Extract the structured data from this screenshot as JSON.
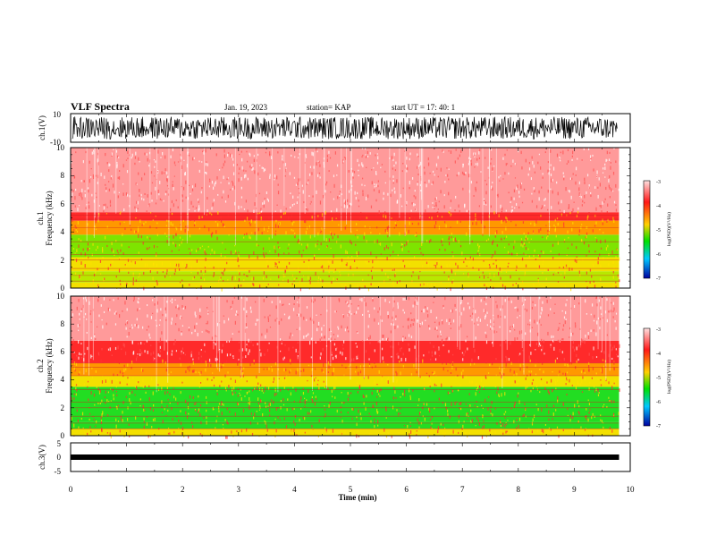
{
  "header": {
    "title": "VLF Spectra",
    "date": "Jan. 19, 2023",
    "station": "station= KAP",
    "start": "start  UT  =   17: 40: 1"
  },
  "chart_data": [
    {
      "panel": "ch1-waveform",
      "type": "line",
      "ylabel": "ch.1(V)",
      "ylim": [
        -10,
        10
      ],
      "ytick_labels": [
        "10",
        "-10"
      ],
      "xlim": [
        0,
        10
      ],
      "trace_color": "#000000"
    },
    {
      "panel": "ch1-spectrogram",
      "type": "heatmap",
      "ylabel_line1": "ch.1",
      "ylabel_line2": "Frequency (kHz)",
      "ylim": [
        0,
        10
      ],
      "ytick_labels": [
        "0",
        "2",
        "4",
        "6",
        "8",
        "10"
      ],
      "xlim": [
        0,
        9.8
      ],
      "bands_khz": [
        {
          "from": 0.0,
          "to": 0.4,
          "level": "yellow"
        },
        {
          "from": 0.4,
          "to": 1.2,
          "level": "yellow-green"
        },
        {
          "from": 1.2,
          "to": 2.2,
          "level": "yellow"
        },
        {
          "from": 2.2,
          "to": 3.8,
          "level": "green-yellow"
        },
        {
          "from": 3.8,
          "to": 4.8,
          "level": "orange"
        },
        {
          "from": 4.8,
          "to": 5.4,
          "level": "red"
        },
        {
          "from": 5.4,
          "to": 10.0,
          "level": "light-red"
        }
      ],
      "colorbar": {
        "label": "log(PSD)(V²/Hz)",
        "min": -7,
        "max": -3,
        "tick_labels": [
          "-3",
          "-4",
          "-5",
          "-6",
          "-7"
        ],
        "colors": [
          "#ffd8d8",
          "#ff2020",
          "#ffd000",
          "#00e000",
          "#00c8ff",
          "#0000b0"
        ]
      }
    },
    {
      "panel": "ch2-spectrogram",
      "type": "heatmap",
      "ylabel_line1": "ch.2",
      "ylabel_line2": "Frequency (kHz)",
      "ylim": [
        0,
        10
      ],
      "ytick_labels": [
        "0",
        "2",
        "4",
        "6",
        "8",
        "10"
      ],
      "xlim": [
        0,
        9.8
      ],
      "bands_khz": [
        {
          "from": 0.0,
          "to": 0.5,
          "level": "yellow"
        },
        {
          "from": 0.5,
          "to": 1.0,
          "level": "green"
        },
        {
          "from": 1.0,
          "to": 3.5,
          "level": "green"
        },
        {
          "from": 3.5,
          "to": 4.3,
          "level": "yellow"
        },
        {
          "from": 4.3,
          "to": 5.2,
          "level": "orange"
        },
        {
          "from": 5.2,
          "to": 6.8,
          "level": "red"
        },
        {
          "from": 6.8,
          "to": 10.0,
          "level": "light-red"
        }
      ],
      "colorbar": {
        "label": "log(PSD)(V²/Hz)",
        "min": -7,
        "max": -3,
        "tick_labels": [
          "-3",
          "-4",
          "-5",
          "-6",
          "-7"
        ],
        "colors": [
          "#ffd8d8",
          "#ff2020",
          "#ffd000",
          "#00e000",
          "#00c8ff",
          "#0000b0"
        ]
      }
    },
    {
      "panel": "ch3-waveform",
      "type": "line",
      "ylabel": "ch.3(V)",
      "ylim": [
        -5,
        5
      ],
      "ytick_labels": [
        "5",
        "0",
        "-5"
      ],
      "xlim": [
        0,
        9.8
      ],
      "trace_color": "#000000"
    }
  ],
  "xaxis": {
    "label": "Time (min)",
    "min": 0,
    "max": 10,
    "tick_labels": [
      "0",
      "1",
      "2",
      "3",
      "4",
      "5",
      "6",
      "7",
      "8",
      "9",
      "10"
    ]
  }
}
